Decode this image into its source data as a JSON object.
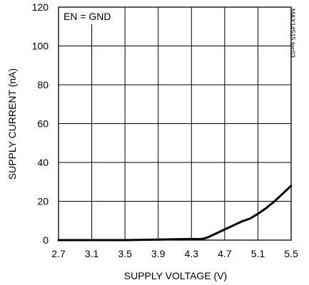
{
  "chart_data": {
    "type": "line",
    "title": "",
    "xlabel": "SUPPLY VOLTAGE (V)",
    "ylabel": "SUPPLY CURRENT (nA)",
    "xlim": [
      2.7,
      5.5
    ],
    "ylim": [
      0,
      120
    ],
    "x_ticks": [
      "2.7",
      "3.1",
      "3.5",
      "3.9",
      "4.3",
      "4.7",
      "5.1",
      "5.5"
    ],
    "y_ticks": [
      "0",
      "20",
      "40",
      "60",
      "80",
      "100",
      "120"
    ],
    "grid": true,
    "annotation": "EN = GND",
    "watermark": "MAX14515 toc03",
    "series": [
      {
        "x": [
          2.7,
          3.1,
          3.5,
          3.9,
          4.2,
          4.3,
          4.4,
          4.45,
          4.5,
          4.55,
          4.6,
          4.7,
          4.8,
          4.9,
          5.0,
          5.1,
          5.2,
          5.3,
          5.4,
          5.5
        ],
        "y": [
          0,
          0,
          0,
          0.3,
          0.5,
          0.6,
          0.5,
          0.8,
          1.5,
          2.5,
          3.5,
          5.5,
          7.5,
          9.5,
          11,
          13.5,
          16.5,
          20,
          24,
          28
        ]
      }
    ]
  }
}
